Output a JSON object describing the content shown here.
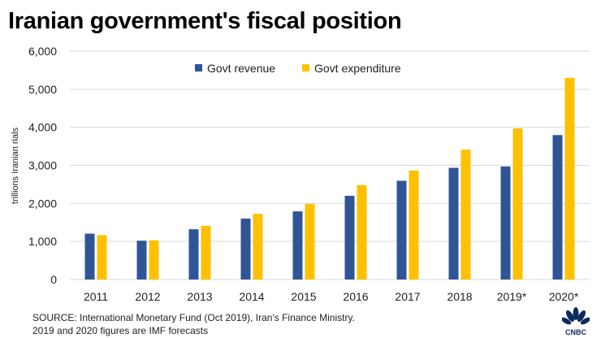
{
  "title": "Iranian government's fiscal position",
  "source_line1": "SOURCE: International Monetary Fund (Oct 2019), Iran's Finance Ministry.",
  "source_line2": "2019 and 2020 figures are IMF forecasts",
  "logo_text": "CNBC",
  "chart_data": {
    "type": "bar",
    "title": "Iranian government's fiscal position",
    "xlabel": "",
    "ylabel": "trillions Iranian rials",
    "ylim": [
      0,
      6000
    ],
    "yticks": [
      0,
      1000,
      2000,
      3000,
      4000,
      5000,
      6000
    ],
    "ytick_labels": [
      "0",
      "1,000",
      "2,000",
      "3,000",
      "4,000",
      "5,000",
      "6,000"
    ],
    "grid": true,
    "legend_position": "top-center",
    "categories": [
      "2011",
      "2012",
      "2013",
      "2014",
      "2015",
      "2016",
      "2017",
      "2018",
      "2019*",
      "2020*"
    ],
    "series": [
      {
        "name": "Govt revenue",
        "color": "#2F5597",
        "values": [
          1205,
          1020,
          1320,
          1600,
          1790,
          2200,
          2595,
          2935,
          2970,
          3795
        ]
      },
      {
        "name": "Govt expenditure",
        "color": "#FFC000",
        "values": [
          1165,
          1030,
          1410,
          1725,
          1985,
          2480,
          2865,
          3410,
          3970,
          5300
        ]
      }
    ]
  }
}
